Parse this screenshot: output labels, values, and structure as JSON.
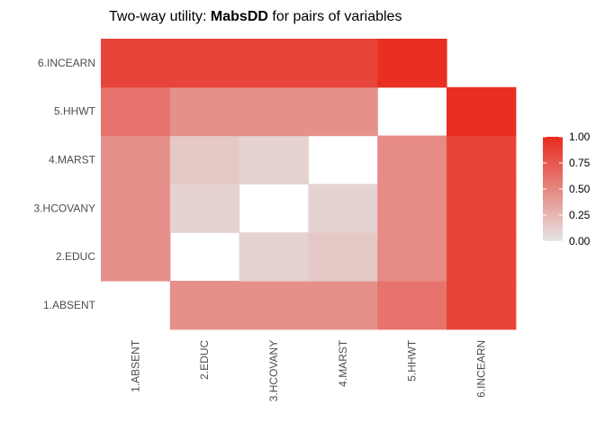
{
  "chart_data": {
    "type": "heatmap",
    "title": {
      "prefix": "Two-way utility: ",
      "bold": "MabsDD",
      "suffix": " for pairs of variables"
    },
    "x_categories": [
      "1.ABSENT",
      "2.EDUC",
      "3.HCOVANY",
      "4.MARST",
      "5.HHWT",
      "6.INCEARN"
    ],
    "y_categories": [
      "1.ABSENT",
      "2.EDUC",
      "3.HCOVANY",
      "4.MARST",
      "5.HHWT",
      "6.INCEARN"
    ],
    "cells": [
      {
        "x": "2.EDUC",
        "y": "1.ABSENT",
        "value": 0.45
      },
      {
        "x": "3.HCOVANY",
        "y": "1.ABSENT",
        "value": 0.45
      },
      {
        "x": "4.MARST",
        "y": "1.ABSENT",
        "value": 0.45
      },
      {
        "x": "5.HHWT",
        "y": "1.ABSENT",
        "value": 0.6
      },
      {
        "x": "6.INCEARN",
        "y": "1.ABSENT",
        "value": 0.85
      },
      {
        "x": "1.ABSENT",
        "y": "2.EDUC",
        "value": 0.45
      },
      {
        "x": "3.HCOVANY",
        "y": "2.EDUC",
        "value": 0.1
      },
      {
        "x": "4.MARST",
        "y": "2.EDUC",
        "value": 0.15
      },
      {
        "x": "5.HHWT",
        "y": "2.EDUC",
        "value": 0.48
      },
      {
        "x": "6.INCEARN",
        "y": "2.EDUC",
        "value": 0.85
      },
      {
        "x": "1.ABSENT",
        "y": "3.HCOVANY",
        "value": 0.45
      },
      {
        "x": "2.EDUC",
        "y": "3.HCOVANY",
        "value": 0.1
      },
      {
        "x": "4.MARST",
        "y": "3.HCOVANY",
        "value": 0.1
      },
      {
        "x": "5.HHWT",
        "y": "3.HCOVANY",
        "value": 0.48
      },
      {
        "x": "6.INCEARN",
        "y": "3.HCOVANY",
        "value": 0.85
      },
      {
        "x": "1.ABSENT",
        "y": "4.MARST",
        "value": 0.45
      },
      {
        "x": "2.EDUC",
        "y": "4.MARST",
        "value": 0.15
      },
      {
        "x": "3.HCOVANY",
        "y": "4.MARST",
        "value": 0.1
      },
      {
        "x": "5.HHWT",
        "y": "4.MARST",
        "value": 0.48
      },
      {
        "x": "6.INCEARN",
        "y": "4.MARST",
        "value": 0.85
      },
      {
        "x": "1.ABSENT",
        "y": "5.HHWT",
        "value": 0.6
      },
      {
        "x": "2.EDUC",
        "y": "5.HHWT",
        "value": 0.45
      },
      {
        "x": "3.HCOVANY",
        "y": "5.HHWT",
        "value": 0.45
      },
      {
        "x": "4.MARST",
        "y": "5.HHWT",
        "value": 0.45
      },
      {
        "x": "6.INCEARN",
        "y": "5.HHWT",
        "value": 0.97
      },
      {
        "x": "1.ABSENT",
        "y": "6.INCEARN",
        "value": 0.85
      },
      {
        "x": "2.EDUC",
        "y": "6.INCEARN",
        "value": 0.85
      },
      {
        "x": "3.HCOVANY",
        "y": "6.INCEARN",
        "value": 0.85
      },
      {
        "x": "4.MARST",
        "y": "6.INCEARN",
        "value": 0.85
      },
      {
        "x": "5.HHWT",
        "y": "6.INCEARN",
        "value": 0.97
      }
    ],
    "missing_cells_note": "",
    "color_scale": {
      "low": "#e5e5e5",
      "high": "#e8291c",
      "limits": [
        0,
        1
      ]
    },
    "legend": {
      "position": "right",
      "breaks": [
        1.0,
        0.75,
        0.5,
        0.25,
        0.0
      ],
      "labels": [
        "1.00",
        "0.75",
        "0.50",
        "0.25",
        "0.00"
      ]
    },
    "xlabel": "",
    "ylabel": "",
    "x_tick_rotation": "vertical",
    "grid": false,
    "background": "#ffffff"
  }
}
